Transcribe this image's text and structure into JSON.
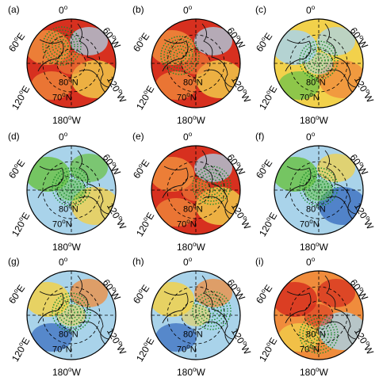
{
  "panels": [
    {
      "id": "(a)",
      "dominant": "warm",
      "stipple": "upper-center-left"
    },
    {
      "id": "(b)",
      "dominant": "warm",
      "stipple": "left"
    },
    {
      "id": "(c)",
      "dominant": "mixed",
      "stipple": "center"
    },
    {
      "id": "(d)",
      "dominant": "green",
      "stipple": "center"
    },
    {
      "id": "(e)",
      "dominant": "warm",
      "stipple": "right"
    },
    {
      "id": "(f)",
      "dominant": "green-blue",
      "stipple": "center"
    },
    {
      "id": "(g)",
      "dominant": "cool",
      "stipple": "center"
    },
    {
      "id": "(h)",
      "dominant": "cool",
      "stipple": "right"
    },
    {
      "id": "(i)",
      "dominant": "warm-ring",
      "stipple": "bottom"
    }
  ],
  "labels": {
    "top": "0",
    "left": "60",
    "left_hem": "E",
    "right": "60",
    "right_hem": "W",
    "lower_left": "120",
    "lower_left_hem": "E",
    "lower_right": "120",
    "lower_right_hem": "W",
    "bottom": "180",
    "bottom_hem": "W",
    "ring80": "80",
    "ring80_hem": "N",
    "ring70": "70",
    "ring70_hem": "N",
    "deg": "o"
  },
  "colors": {
    "red": "#d7301f",
    "orange": "#f08c3c",
    "yellow": "#f2d14b",
    "green": "#6cc24a",
    "lightblue": "#a9d3ea",
    "blue": "#3b6fc0",
    "stipple": "#1a8a2a"
  }
}
